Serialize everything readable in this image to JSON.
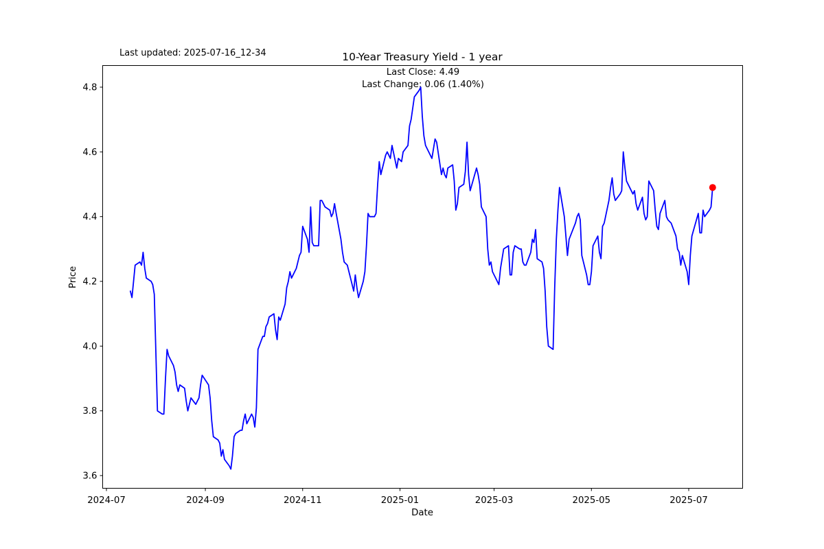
{
  "header": {
    "last_updated_label": "Last updated: 2025-07-16_12-34",
    "title": "10-Year Treasury Yield - 1 year",
    "annotation_line1": "Last Close: 4.49",
    "annotation_line2": "Last Change: 0.06 (1.40%)"
  },
  "chart_data": {
    "type": "line",
    "title": "10-Year Treasury Yield - 1 year",
    "xlabel": "Date",
    "ylabel": "Price",
    "last_close": 4.49,
    "last_change": 0.06,
    "last_change_pct": "1.40%",
    "line_color": "#0000ff",
    "marker_color": "#ff0000",
    "axis_color": "#000000",
    "grid": false,
    "legend": "none",
    "x_ticks": [
      "2024-07",
      "2024-09",
      "2024-11",
      "2025-01",
      "2025-03",
      "2025-05",
      "2025-07"
    ],
    "y_ticks": [
      "3.6",
      "3.8",
      "4.0",
      "4.2",
      "4.4",
      "4.6",
      "4.8"
    ],
    "ylim": [
      3.56,
      4.87
    ],
    "xlim": [
      "2024-06-28",
      "2025-08-03"
    ],
    "series": [
      {
        "name": "10-Year Treasury Yield",
        "points": [
          [
            "2024-07-16",
            4.17
          ],
          [
            "2024-07-17",
            4.15
          ],
          [
            "2024-07-18",
            4.2
          ],
          [
            "2024-07-19",
            4.25
          ],
          [
            "2024-07-22",
            4.26
          ],
          [
            "2024-07-23",
            4.25
          ],
          [
            "2024-07-24",
            4.29
          ],
          [
            "2024-07-25",
            4.24
          ],
          [
            "2024-07-26",
            4.21
          ],
          [
            "2024-07-29",
            4.2
          ],
          [
            "2024-07-30",
            4.19
          ],
          [
            "2024-07-31",
            4.16
          ],
          [
            "2024-08-01",
            3.98
          ],
          [
            "2024-08-02",
            3.8
          ],
          [
            "2024-08-05",
            3.79
          ],
          [
            "2024-08-06",
            3.79
          ],
          [
            "2024-08-07",
            3.9
          ],
          [
            "2024-08-08",
            3.99
          ],
          [
            "2024-08-09",
            3.97
          ],
          [
            "2024-08-12",
            3.94
          ],
          [
            "2024-08-13",
            3.92
          ],
          [
            "2024-08-14",
            3.88
          ],
          [
            "2024-08-15",
            3.86
          ],
          [
            "2024-08-16",
            3.88
          ],
          [
            "2024-08-19",
            3.87
          ],
          [
            "2024-08-20",
            3.83
          ],
          [
            "2024-08-21",
            3.8
          ],
          [
            "2024-08-22",
            3.82
          ],
          [
            "2024-08-23",
            3.84
          ],
          [
            "2024-08-26",
            3.82
          ],
          [
            "2024-08-27",
            3.83
          ],
          [
            "2024-08-28",
            3.84
          ],
          [
            "2024-08-29",
            3.88
          ],
          [
            "2024-08-30",
            3.91
          ],
          [
            "2024-09-03",
            3.88
          ],
          [
            "2024-09-04",
            3.84
          ],
          [
            "2024-09-05",
            3.77
          ],
          [
            "2024-09-06",
            3.72
          ],
          [
            "2024-09-09",
            3.71
          ],
          [
            "2024-09-10",
            3.7
          ],
          [
            "2024-09-11",
            3.66
          ],
          [
            "2024-09-12",
            3.68
          ],
          [
            "2024-09-13",
            3.65
          ],
          [
            "2024-09-16",
            3.63
          ],
          [
            "2024-09-17",
            3.62
          ],
          [
            "2024-09-18",
            3.66
          ],
          [
            "2024-09-19",
            3.72
          ],
          [
            "2024-09-20",
            3.73
          ],
          [
            "2024-09-23",
            3.74
          ],
          [
            "2024-09-24",
            3.74
          ],
          [
            "2024-09-25",
            3.77
          ],
          [
            "2024-09-26",
            3.79
          ],
          [
            "2024-09-27",
            3.76
          ],
          [
            "2024-09-30",
            3.79
          ],
          [
            "2024-10-01",
            3.78
          ],
          [
            "2024-10-02",
            3.75
          ],
          [
            "2024-10-03",
            3.81
          ],
          [
            "2024-10-04",
            3.99
          ],
          [
            "2024-10-07",
            4.03
          ],
          [
            "2024-10-08",
            4.03
          ],
          [
            "2024-10-09",
            4.06
          ],
          [
            "2024-10-10",
            4.07
          ],
          [
            "2024-10-11",
            4.09
          ],
          [
            "2024-10-14",
            4.1
          ],
          [
            "2024-10-15",
            4.05
          ],
          [
            "2024-10-16",
            4.02
          ],
          [
            "2024-10-17",
            4.09
          ],
          [
            "2024-10-18",
            4.08
          ],
          [
            "2024-10-21",
            4.13
          ],
          [
            "2024-10-22",
            4.18
          ],
          [
            "2024-10-23",
            4.2
          ],
          [
            "2024-10-24",
            4.23
          ],
          [
            "2024-10-25",
            4.21
          ],
          [
            "2024-10-28",
            4.24
          ],
          [
            "2024-10-29",
            4.26
          ],
          [
            "2024-10-30",
            4.28
          ],
          [
            "2024-10-31",
            4.29
          ],
          [
            "2024-11-01",
            4.37
          ],
          [
            "2024-11-04",
            4.33
          ],
          [
            "2024-11-05",
            4.29
          ],
          [
            "2024-11-06",
            4.43
          ],
          [
            "2024-11-07",
            4.32
          ],
          [
            "2024-11-08",
            4.31
          ],
          [
            "2024-11-11",
            4.31
          ],
          [
            "2024-11-12",
            4.45
          ],
          [
            "2024-11-13",
            4.45
          ],
          [
            "2024-11-14",
            4.44
          ],
          [
            "2024-11-15",
            4.43
          ],
          [
            "2024-11-18",
            4.42
          ],
          [
            "2024-11-19",
            4.4
          ],
          [
            "2024-11-20",
            4.41
          ],
          [
            "2024-11-21",
            4.44
          ],
          [
            "2024-11-22",
            4.41
          ],
          [
            "2024-11-25",
            4.33
          ],
          [
            "2024-11-26",
            4.29
          ],
          [
            "2024-11-27",
            4.26
          ],
          [
            "2024-11-29",
            4.25
          ],
          [
            "2024-12-02",
            4.19
          ],
          [
            "2024-12-03",
            4.17
          ],
          [
            "2024-12-04",
            4.22
          ],
          [
            "2024-12-05",
            4.18
          ],
          [
            "2024-12-06",
            4.15
          ],
          [
            "2024-12-09",
            4.2
          ],
          [
            "2024-12-10",
            4.23
          ],
          [
            "2024-12-11",
            4.31
          ],
          [
            "2024-12-12",
            4.41
          ],
          [
            "2024-12-13",
            4.4
          ],
          [
            "2024-12-16",
            4.4
          ],
          [
            "2024-12-17",
            4.41
          ],
          [
            "2024-12-18",
            4.5
          ],
          [
            "2024-12-19",
            4.57
          ],
          [
            "2024-12-20",
            4.53
          ],
          [
            "2024-12-23",
            4.59
          ],
          [
            "2024-12-24",
            4.6
          ],
          [
            "2024-12-26",
            4.58
          ],
          [
            "2024-12-27",
            4.62
          ],
          [
            "2024-12-30",
            4.55
          ],
          [
            "2024-12-31",
            4.58
          ],
          [
            "2025-01-02",
            4.57
          ],
          [
            "2025-01-03",
            4.6
          ],
          [
            "2025-01-06",
            4.62
          ],
          [
            "2025-01-07",
            4.68
          ],
          [
            "2025-01-08",
            4.7
          ],
          [
            "2025-01-10",
            4.77
          ],
          [
            "2025-01-13",
            4.79
          ],
          [
            "2025-01-14",
            4.8
          ],
          [
            "2025-01-15",
            4.71
          ],
          [
            "2025-01-16",
            4.65
          ],
          [
            "2025-01-17",
            4.62
          ],
          [
            "2025-01-21",
            4.58
          ],
          [
            "2025-01-22",
            4.61
          ],
          [
            "2025-01-23",
            4.64
          ],
          [
            "2025-01-24",
            4.63
          ],
          [
            "2025-01-27",
            4.53
          ],
          [
            "2025-01-28",
            4.55
          ],
          [
            "2025-01-29",
            4.53
          ],
          [
            "2025-01-30",
            4.52
          ],
          [
            "2025-01-31",
            4.55
          ],
          [
            "2025-02-03",
            4.56
          ],
          [
            "2025-02-04",
            4.51
          ],
          [
            "2025-02-05",
            4.42
          ],
          [
            "2025-02-06",
            4.44
          ],
          [
            "2025-02-07",
            4.49
          ],
          [
            "2025-02-10",
            4.5
          ],
          [
            "2025-02-11",
            4.54
          ],
          [
            "2025-02-12",
            4.63
          ],
          [
            "2025-02-13",
            4.53
          ],
          [
            "2025-02-14",
            4.48
          ],
          [
            "2025-02-18",
            4.55
          ],
          [
            "2025-02-19",
            4.53
          ],
          [
            "2025-02-20",
            4.5
          ],
          [
            "2025-02-21",
            4.43
          ],
          [
            "2025-02-24",
            4.4
          ],
          [
            "2025-02-25",
            4.3
          ],
          [
            "2025-02-26",
            4.25
          ],
          [
            "2025-02-27",
            4.26
          ],
          [
            "2025-02-28",
            4.23
          ],
          [
            "2025-03-03",
            4.2
          ],
          [
            "2025-03-04",
            4.19
          ],
          [
            "2025-03-05",
            4.24
          ],
          [
            "2025-03-06",
            4.27
          ],
          [
            "2025-03-07",
            4.3
          ],
          [
            "2025-03-10",
            4.31
          ],
          [
            "2025-03-11",
            4.22
          ],
          [
            "2025-03-12",
            4.22
          ],
          [
            "2025-03-13",
            4.29
          ],
          [
            "2025-03-14",
            4.31
          ],
          [
            "2025-03-17",
            4.3
          ],
          [
            "2025-03-18",
            4.3
          ],
          [
            "2025-03-19",
            4.26
          ],
          [
            "2025-03-20",
            4.25
          ],
          [
            "2025-03-21",
            4.25
          ],
          [
            "2025-03-24",
            4.29
          ],
          [
            "2025-03-25",
            4.33
          ],
          [
            "2025-03-26",
            4.32
          ],
          [
            "2025-03-27",
            4.36
          ],
          [
            "2025-03-28",
            4.27
          ],
          [
            "2025-03-31",
            4.26
          ],
          [
            "2025-04-01",
            4.24
          ],
          [
            "2025-04-02",
            4.17
          ],
          [
            "2025-04-03",
            4.06
          ],
          [
            "2025-04-04",
            4.0
          ],
          [
            "2025-04-07",
            3.99
          ],
          [
            "2025-04-08",
            4.18
          ],
          [
            "2025-04-09",
            4.33
          ],
          [
            "2025-04-10",
            4.42
          ],
          [
            "2025-04-11",
            4.49
          ],
          [
            "2025-04-14",
            4.4
          ],
          [
            "2025-04-15",
            4.34
          ],
          [
            "2025-04-16",
            4.28
          ],
          [
            "2025-04-17",
            4.33
          ],
          [
            "2025-04-21",
            4.38
          ],
          [
            "2025-04-22",
            4.4
          ],
          [
            "2025-04-23",
            4.41
          ],
          [
            "2025-04-24",
            4.39
          ],
          [
            "2025-04-25",
            4.28
          ],
          [
            "2025-04-28",
            4.22
          ],
          [
            "2025-04-29",
            4.19
          ],
          [
            "2025-04-30",
            4.19
          ],
          [
            "2025-05-01",
            4.23
          ],
          [
            "2025-05-02",
            4.31
          ],
          [
            "2025-05-05",
            4.34
          ],
          [
            "2025-05-06",
            4.29
          ],
          [
            "2025-05-07",
            4.27
          ],
          [
            "2025-05-08",
            4.37
          ],
          [
            "2025-05-09",
            4.38
          ],
          [
            "2025-05-12",
            4.45
          ],
          [
            "2025-05-13",
            4.49
          ],
          [
            "2025-05-14",
            4.52
          ],
          [
            "2025-05-15",
            4.47
          ],
          [
            "2025-05-16",
            4.45
          ],
          [
            "2025-05-19",
            4.47
          ],
          [
            "2025-05-20",
            4.48
          ],
          [
            "2025-05-21",
            4.6
          ],
          [
            "2025-05-22",
            4.55
          ],
          [
            "2025-05-23",
            4.51
          ],
          [
            "2025-05-27",
            4.47
          ],
          [
            "2025-05-28",
            4.48
          ],
          [
            "2025-05-29",
            4.44
          ],
          [
            "2025-05-30",
            4.42
          ],
          [
            "2025-06-02",
            4.46
          ],
          [
            "2025-06-03",
            4.41
          ],
          [
            "2025-06-04",
            4.39
          ],
          [
            "2025-06-05",
            4.4
          ],
          [
            "2025-06-06",
            4.51
          ],
          [
            "2025-06-09",
            4.48
          ],
          [
            "2025-06-10",
            4.42
          ],
          [
            "2025-06-11",
            4.37
          ],
          [
            "2025-06-12",
            4.36
          ],
          [
            "2025-06-13",
            4.41
          ],
          [
            "2025-06-16",
            4.45
          ],
          [
            "2025-06-17",
            4.4
          ],
          [
            "2025-06-18",
            4.39
          ],
          [
            "2025-06-20",
            4.38
          ],
          [
            "2025-06-23",
            4.34
          ],
          [
            "2025-06-24",
            4.3
          ],
          [
            "2025-06-25",
            4.29
          ],
          [
            "2025-06-26",
            4.25
          ],
          [
            "2025-06-27",
            4.28
          ],
          [
            "2025-06-30",
            4.23
          ],
          [
            "2025-07-01",
            4.19
          ],
          [
            "2025-07-02",
            4.28
          ],
          [
            "2025-07-03",
            4.34
          ],
          [
            "2025-07-07",
            4.41
          ],
          [
            "2025-07-08",
            4.35
          ],
          [
            "2025-07-09",
            4.35
          ],
          [
            "2025-07-10",
            4.42
          ],
          [
            "2025-07-11",
            4.4
          ],
          [
            "2025-07-14",
            4.42
          ],
          [
            "2025-07-15",
            4.43
          ],
          [
            "2025-07-16",
            4.49
          ]
        ]
      }
    ]
  }
}
